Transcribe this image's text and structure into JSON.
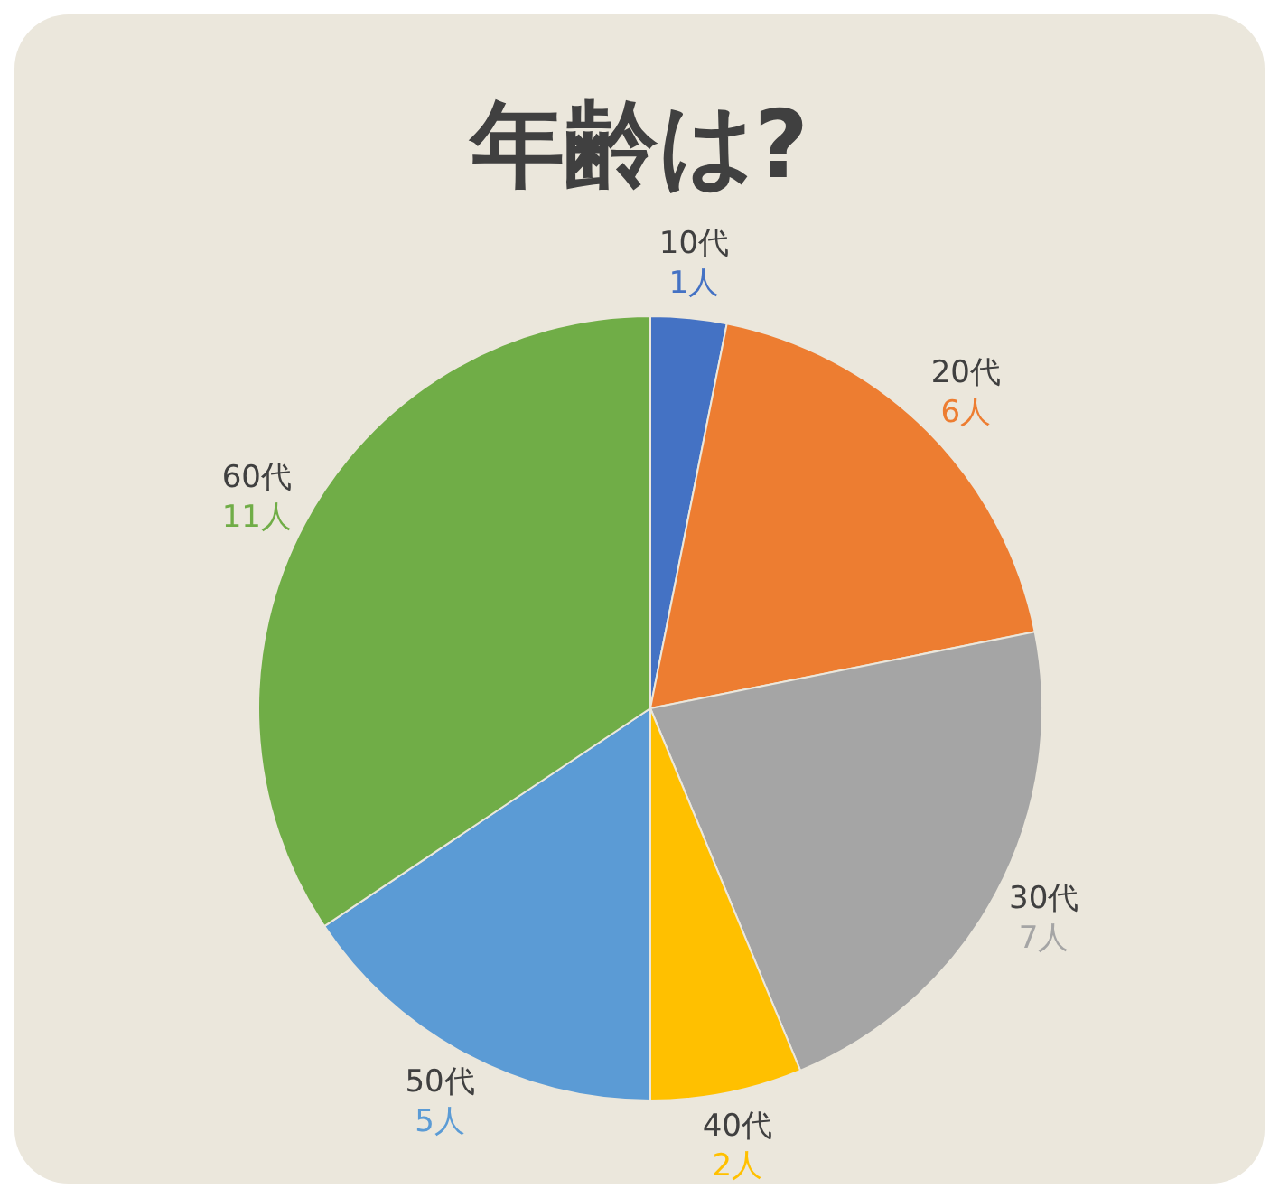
{
  "chart_data": {
    "type": "pie",
    "title": "年齢は?",
    "categories": [
      "10代",
      "20代",
      "30代",
      "40代",
      "50代",
      "60代"
    ],
    "values": [
      1,
      6,
      7,
      2,
      5,
      11
    ],
    "colors": [
      "#4472c4",
      "#ed7d31",
      "#a5a5a5",
      "#ffc000",
      "#5b9bd5",
      "#70ad47"
    ],
    "value_labels": [
      "1人",
      "6人",
      "7人",
      "2人",
      "5人",
      "11人"
    ]
  }
}
